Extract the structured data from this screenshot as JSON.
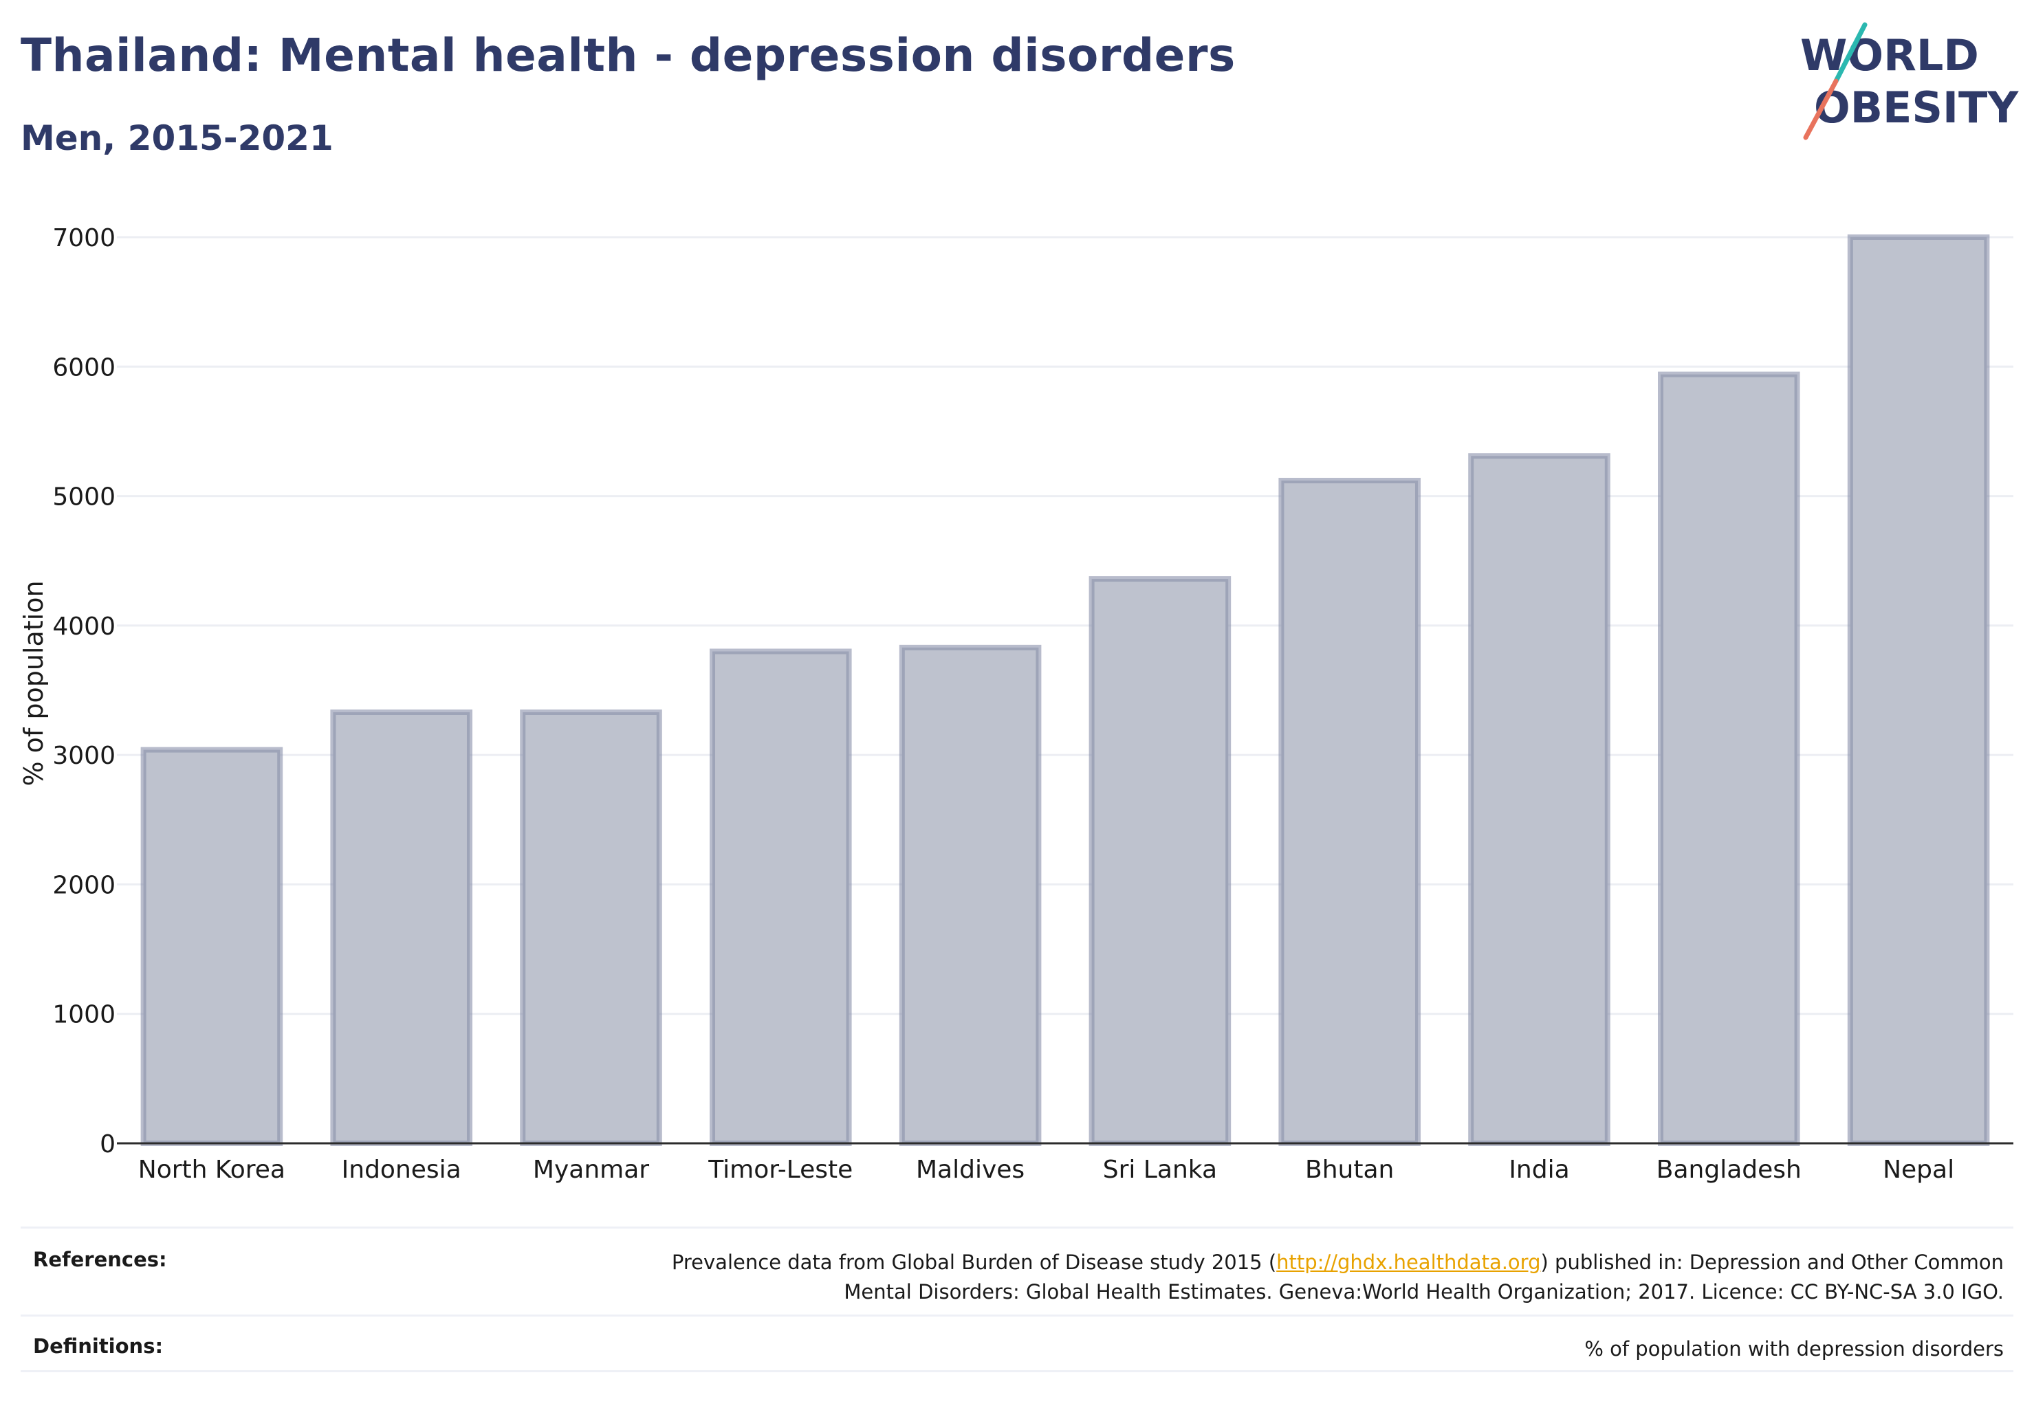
{
  "header": {
    "title": "Thailand: Mental health - depression disorders",
    "subtitle": "Men, 2015-2021"
  },
  "logo": {
    "line1": "WORLD",
    "line2": "OBESITY",
    "colors": {
      "text": "#2f3a68",
      "slash_teal": "#2bb8b0",
      "slash_coral": "#e8735d"
    }
  },
  "chart_data": {
    "type": "bar",
    "categories": [
      "North Korea",
      "Indonesia",
      "Myanmar",
      "Timor-Leste",
      "Maldives",
      "Sri Lanka",
      "Bhutan",
      "India",
      "Bangladesh",
      "Nepal"
    ],
    "values": [
      3040,
      3330,
      3330,
      3800,
      3830,
      4360,
      5120,
      5310,
      5940,
      7000
    ],
    "title": "Thailand: Mental health - depression disorders",
    "subtitle": "Men, 2015-2021",
    "xlabel": "",
    "ylabel": "% of population",
    "ylim": [
      0,
      7000
    ],
    "yticks": [
      0,
      1000,
      2000,
      3000,
      4000,
      5000,
      6000,
      7000
    ],
    "grid": true,
    "legend": "none",
    "colors": {
      "bar_fill": "#bec2ce",
      "bar_edge": "#8990aa",
      "grid": "#eceef3",
      "axis": "#2b2b2b"
    }
  },
  "footer": {
    "references_label": "References:",
    "references_text_before": "Prevalence data from Global Burden of Disease study 2015 (",
    "references_link": "http://ghdx.healthdata.org",
    "references_text_after": ") published in: Depression and Other Common",
    "references_line2": "Mental Disorders: Global Health Estimates. Geneva:World Health Organization; 2017. Licence: CC BY-NC-SA 3.0 IGO.",
    "definitions_label": "Definitions:",
    "definitions_text": "% of population with depression disorders"
  }
}
